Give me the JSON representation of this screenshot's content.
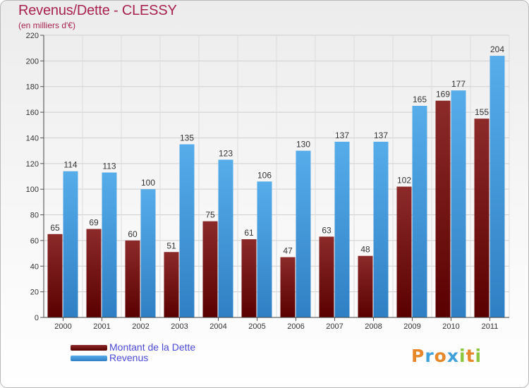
{
  "header": {
    "title": "Revenus/Dette - CLESSY",
    "subtitle": "(en milliers d'€)"
  },
  "legend": {
    "items": [
      {
        "label": "Montant de la Dette",
        "color": "#7a1616"
      },
      {
        "label": "Revenus",
        "color": "#4aa3e6"
      }
    ]
  },
  "logo": {
    "text": "Proxiti",
    "letters": [
      {
        "ch": "P",
        "color": "#e8862a"
      },
      {
        "ch": "r",
        "color": "#3fa0dc"
      },
      {
        "ch": "o",
        "color": "#e8862a"
      },
      {
        "ch": "x",
        "color": "#3fa0dc"
      },
      {
        "ch": "i",
        "color": "#8cc63f"
      },
      {
        "ch": "t",
        "color": "#e8862a"
      },
      {
        "ch": "i",
        "color": "#8cc63f"
      }
    ]
  },
  "chart_data": {
    "type": "bar",
    "title": "Revenus/Dette - CLESSY",
    "subtitle": "(en milliers d'€)",
    "xlabel": "",
    "ylabel": "",
    "categories": [
      "2000",
      "2001",
      "2002",
      "2003",
      "2004",
      "2005",
      "2006",
      "2007",
      "2008",
      "2009",
      "2010",
      "2011"
    ],
    "series": [
      {
        "name": "Montant de la Dette",
        "color": "#7a1616",
        "values": [
          65,
          69,
          60,
          51,
          75,
          61,
          47,
          63,
          48,
          102,
          169,
          155
        ]
      },
      {
        "name": "Revenus",
        "color": "#4aa3e6",
        "values": [
          114,
          113,
          100,
          135,
          123,
          106,
          130,
          137,
          137,
          165,
          177,
          204
        ]
      }
    ],
    "ylim": [
      0,
      220
    ],
    "yticks": [
      0,
      20,
      40,
      60,
      80,
      100,
      120,
      140,
      160,
      180,
      200,
      220
    ],
    "grid": true,
    "legend_position": "bottom-left"
  }
}
